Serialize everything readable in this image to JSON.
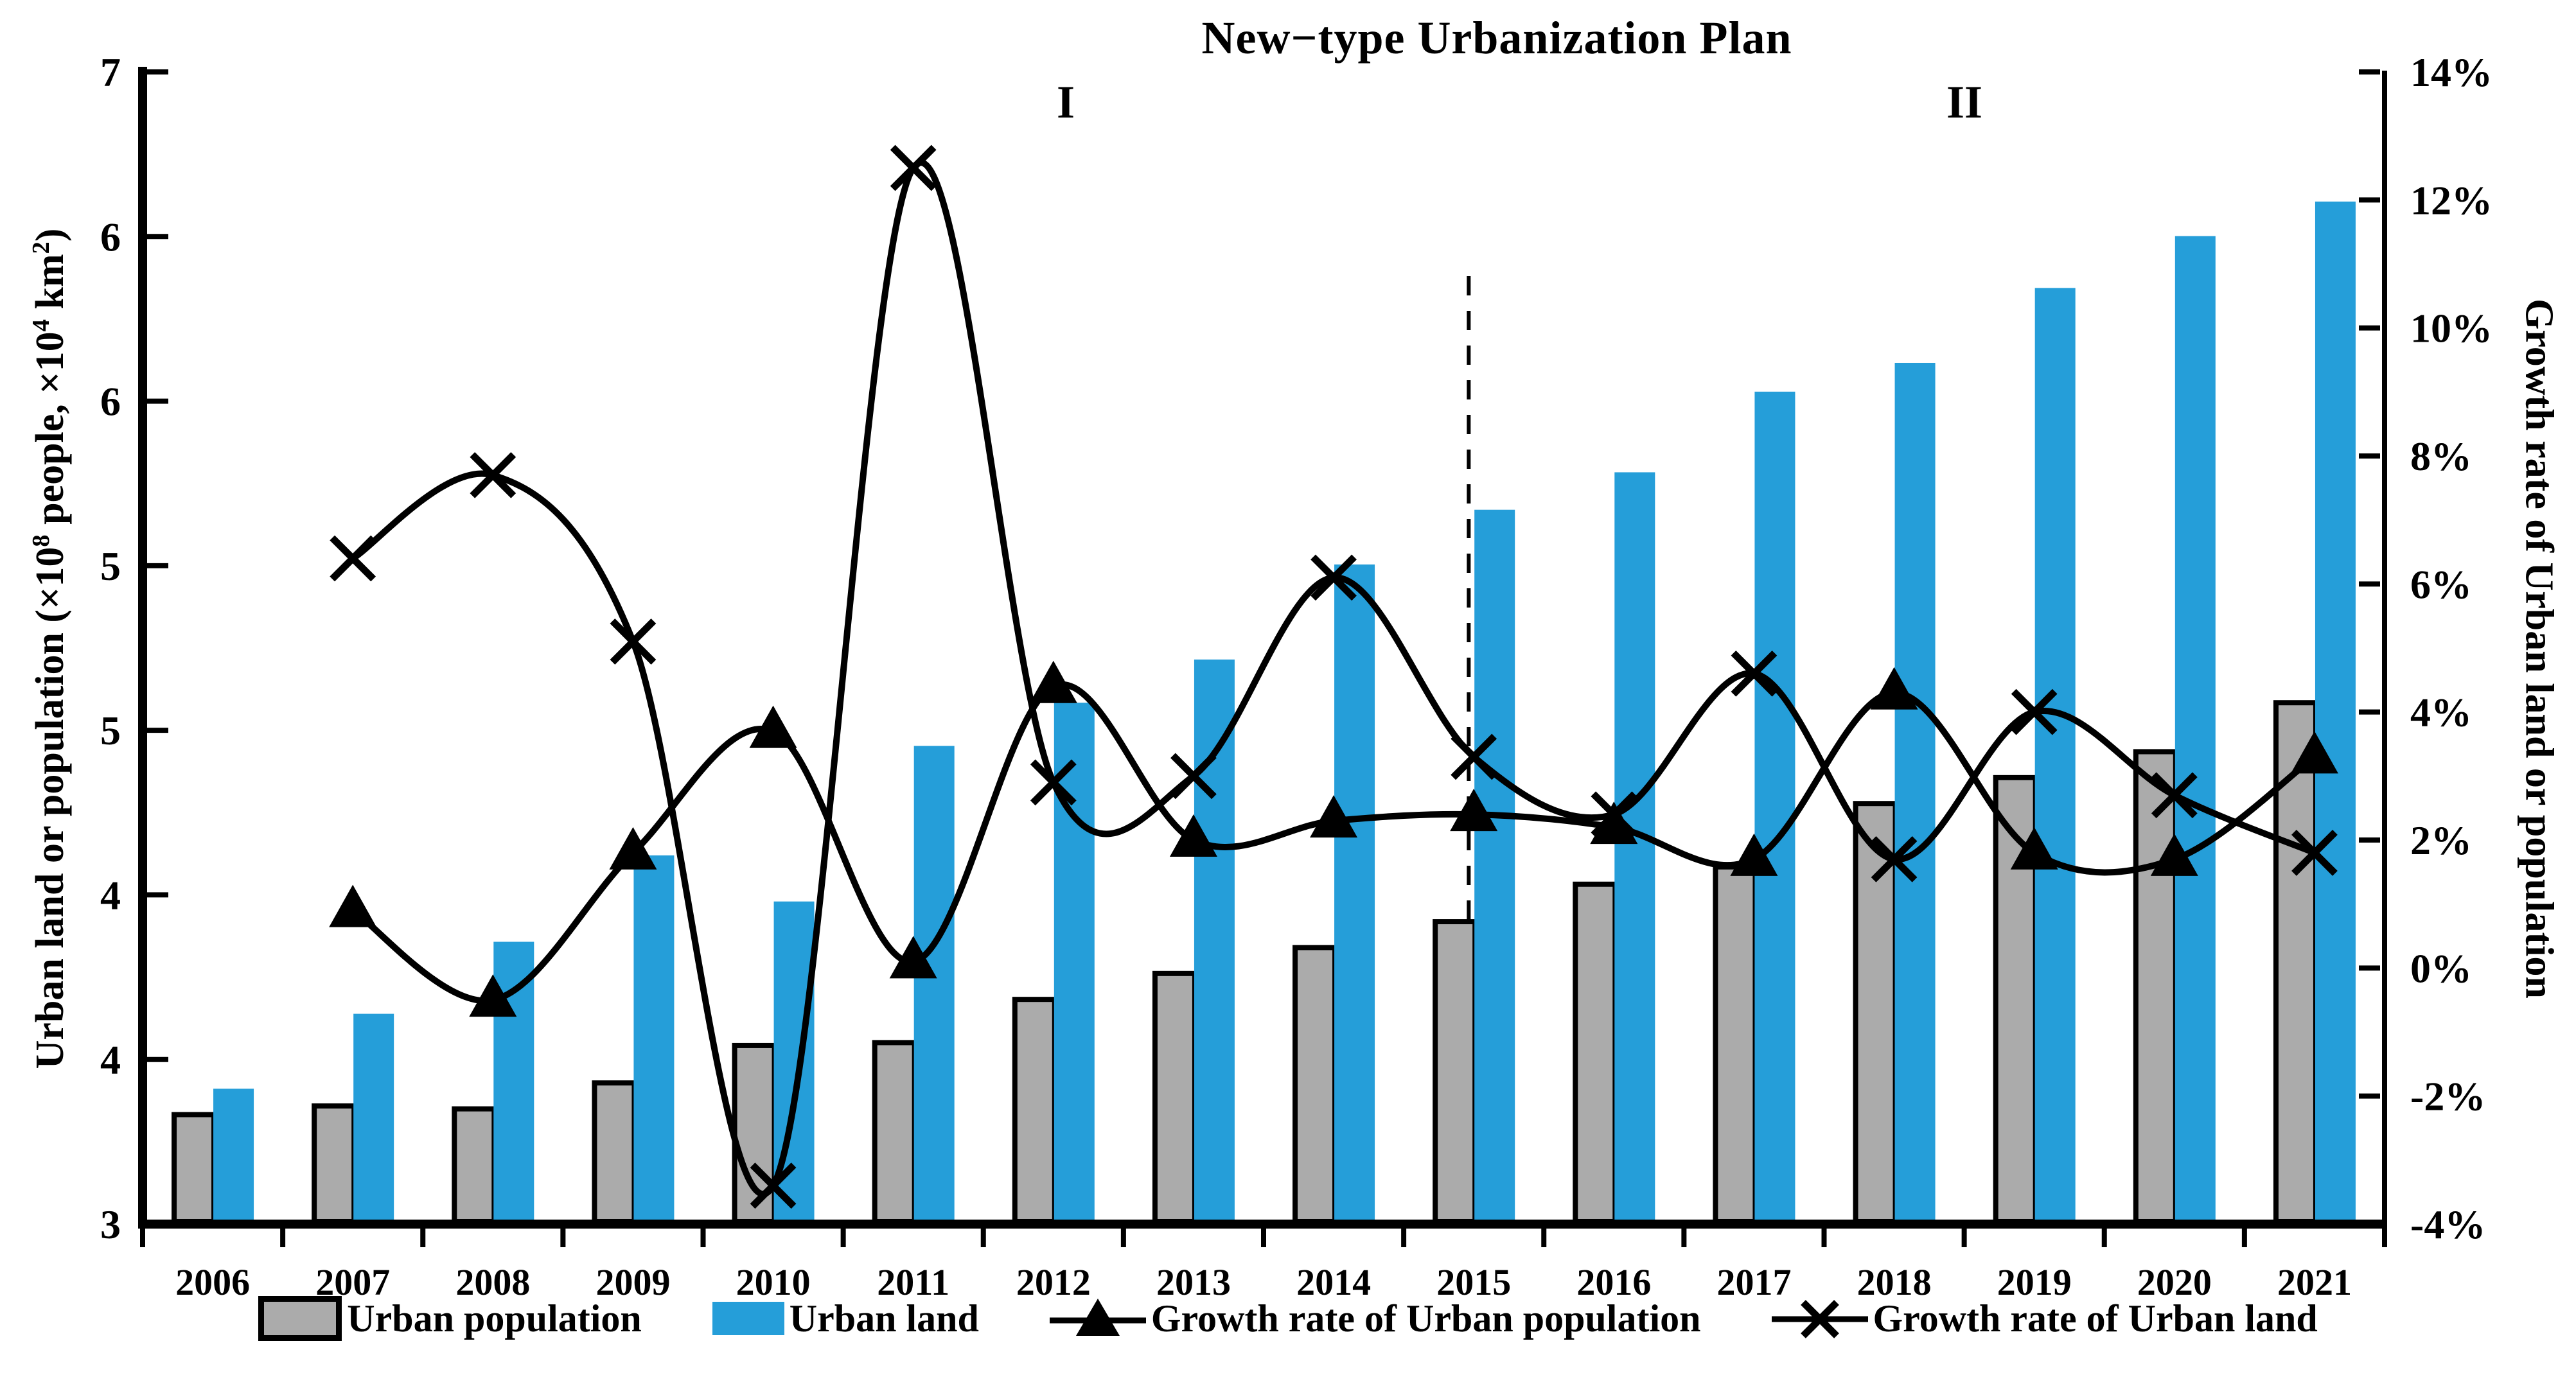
{
  "chart_data": {
    "type": "bar+line combo",
    "title": "New−type Urbanization Plan",
    "sections": [
      {
        "label": "I"
      },
      {
        "label": "II"
      }
    ],
    "divider_after_year": "2014",
    "years": [
      "2006",
      "2007",
      "2008",
      "2009",
      "2010",
      "2011",
      "2012",
      "2013",
      "2014",
      "2015",
      "2016",
      "2017",
      "2018",
      "2019",
      "2020",
      "2021"
    ],
    "left_axis": {
      "min": 3,
      "max": 7,
      "tick_labels": [
        "7",
        "6",
        "6",
        "5",
        "5",
        "4",
        "4",
        "3"
      ],
      "label_plain": "Urban land or population (×10^8 people, ×10^4 km^2)",
      "label_segments": [
        {
          "t": "Urban land or population (×10"
        },
        {
          "sup": "8"
        },
        {
          "t": " people, ×10"
        },
        {
          "sup": "4"
        },
        {
          "t": " km"
        },
        {
          "sup": "2"
        },
        {
          "t": ")"
        }
      ]
    },
    "right_axis": {
      "min": -4,
      "max": 14,
      "tick_labels": [
        "14%",
        "12%",
        "10%",
        "8%",
        "6%",
        "4%",
        "2%",
        "0%",
        "-2%",
        "-4%"
      ],
      "label": "Growth rate of Urban land or population"
    },
    "series": [
      {
        "name": "Urban population",
        "type": "bar",
        "color": "#ABABAB",
        "border_color": "#000000",
        "values": [
          3.38,
          3.41,
          3.4,
          3.49,
          3.62,
          3.63,
          3.78,
          3.87,
          3.96,
          4.05,
          4.18,
          4.24,
          4.46,
          4.55,
          4.64,
          4.81
        ]
      },
      {
        "name": "Urban land",
        "type": "bar",
        "color": "#259ED9",
        "values": [
          3.47,
          3.73,
          3.98,
          4.28,
          4.12,
          4.66,
          4.81,
          4.96,
          5.29,
          5.48,
          5.61,
          5.89,
          5.99,
          6.25,
          6.43,
          6.55
        ]
      },
      {
        "name": "Growth rate of Urban population",
        "type": "line",
        "marker": "triangle",
        "color": "#000000",
        "values_pct": [
          null,
          0.9,
          -0.5,
          1.8,
          3.7,
          0.1,
          4.4,
          2.0,
          2.3,
          2.4,
          2.2,
          1.7,
          4.3,
          1.8,
          1.7,
          3.3
        ]
      },
      {
        "name": "Growth rate of Urban land",
        "type": "line",
        "marker": "x",
        "color": "#000000",
        "values_pct": [
          null,
          6.4,
          7.7,
          5.1,
          -3.4,
          12.5,
          2.9,
          3.0,
          6.1,
          3.3,
          2.4,
          4.6,
          1.7,
          4.0,
          2.7,
          1.8
        ]
      }
    ],
    "legend": {
      "items": [
        {
          "label": "Urban population"
        },
        {
          "label": "Urban land"
        },
        {
          "label": "Growth rate of Urban population"
        },
        {
          "label": "Growth rate of Urban land"
        }
      ]
    },
    "colors": {
      "blue": "#259ED9",
      "gray": "#ABABAB",
      "black": "#000000"
    }
  }
}
